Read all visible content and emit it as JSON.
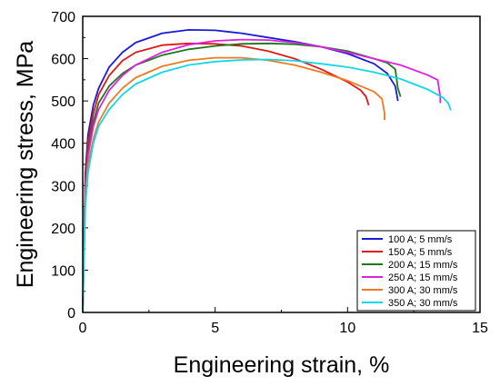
{
  "chart_data": {
    "type": "line",
    "title": "",
    "xlabel": "Engineering strain, %",
    "ylabel": "Engineering stress, MPa",
    "xlim": [
      0,
      15
    ],
    "ylim": [
      0,
      700
    ],
    "xticks": [
      0,
      5,
      10,
      15
    ],
    "yticks": [
      0,
      100,
      200,
      300,
      400,
      500,
      600,
      700
    ],
    "legend_position": "bottom-right",
    "grid": false,
    "series": [
      {
        "name": "100 A; 5 mm/s",
        "color": "#1a1ad9",
        "points": [
          [
            0,
            0
          ],
          [
            0.05,
            180
          ],
          [
            0.1,
            330
          ],
          [
            0.2,
            420
          ],
          [
            0.4,
            490
          ],
          [
            0.6,
            530
          ],
          [
            1,
            580
          ],
          [
            1.5,
            615
          ],
          [
            2,
            638
          ],
          [
            3,
            660
          ],
          [
            4,
            668
          ],
          [
            5,
            667
          ],
          [
            6,
            660
          ],
          [
            7,
            650
          ],
          [
            8,
            640
          ],
          [
            9,
            628
          ],
          [
            10,
            612
          ],
          [
            11,
            588
          ],
          [
            11.5,
            565
          ],
          [
            11.8,
            535
          ],
          [
            11.9,
            500
          ]
        ]
      },
      {
        "name": "150 A; 5 mm/s",
        "color": "#e01818",
        "points": [
          [
            0,
            0
          ],
          [
            0.05,
            170
          ],
          [
            0.1,
            310
          ],
          [
            0.2,
            400
          ],
          [
            0.4,
            470
          ],
          [
            0.6,
            515
          ],
          [
            1,
            560
          ],
          [
            1.5,
            595
          ],
          [
            2,
            615
          ],
          [
            3,
            632
          ],
          [
            4,
            636
          ],
          [
            5,
            635
          ],
          [
            6,
            630
          ],
          [
            7,
            618
          ],
          [
            8,
            600
          ],
          [
            9,
            575
          ],
          [
            10,
            545
          ],
          [
            10.5,
            525
          ],
          [
            10.7,
            510
          ],
          [
            10.8,
            490
          ]
        ]
      },
      {
        "name": "200 A; 15 mm/s",
        "color": "#1a7a1a",
        "points": [
          [
            0,
            0
          ],
          [
            0.05,
            160
          ],
          [
            0.1,
            300
          ],
          [
            0.2,
            380
          ],
          [
            0.4,
            450
          ],
          [
            0.6,
            495
          ],
          [
            1,
            535
          ],
          [
            1.5,
            565
          ],
          [
            2,
            585
          ],
          [
            3,
            608
          ],
          [
            4,
            622
          ],
          [
            5,
            630
          ],
          [
            6,
            635
          ],
          [
            7,
            636
          ],
          [
            8,
            634
          ],
          [
            9,
            628
          ],
          [
            10,
            618
          ],
          [
            11,
            600
          ],
          [
            11.5,
            590
          ],
          [
            11.8,
            575
          ],
          [
            11.9,
            530
          ],
          [
            12,
            510
          ]
        ]
      },
      {
        "name": "250 A; 15 mm/s",
        "color": "#e020e0",
        "points": [
          [
            0,
            0
          ],
          [
            0.05,
            150
          ],
          [
            0.1,
            290
          ],
          [
            0.2,
            370
          ],
          [
            0.4,
            440
          ],
          [
            0.6,
            480
          ],
          [
            1,
            525
          ],
          [
            1.5,
            560
          ],
          [
            2,
            585
          ],
          [
            3,
            615
          ],
          [
            4,
            633
          ],
          [
            5,
            642
          ],
          [
            6,
            645
          ],
          [
            7,
            644
          ],
          [
            8,
            638
          ],
          [
            9,
            628
          ],
          [
            10,
            615
          ],
          [
            11,
            600
          ],
          [
            12,
            585
          ],
          [
            13,
            562
          ],
          [
            13.4,
            550
          ],
          [
            13.5,
            510
          ],
          [
            13.5,
            495
          ]
        ]
      },
      {
        "name": "300 A; 30 mm/s",
        "color": "#f07820",
        "points": [
          [
            0,
            0
          ],
          [
            0.05,
            140
          ],
          [
            0.1,
            270
          ],
          [
            0.2,
            350
          ],
          [
            0.4,
            410
          ],
          [
            0.6,
            450
          ],
          [
            1,
            495
          ],
          [
            1.5,
            530
          ],
          [
            2,
            555
          ],
          [
            3,
            582
          ],
          [
            4,
            596
          ],
          [
            5,
            602
          ],
          [
            6,
            602
          ],
          [
            7,
            596
          ],
          [
            8,
            585
          ],
          [
            9,
            568
          ],
          [
            10,
            548
          ],
          [
            11,
            522
          ],
          [
            11.3,
            505
          ],
          [
            11.4,
            470
          ],
          [
            11.4,
            455
          ]
        ]
      },
      {
        "name": "350 A; 30 mm/s",
        "color": "#10d8e8",
        "points": [
          [
            0,
            0
          ],
          [
            0.05,
            130
          ],
          [
            0.1,
            250
          ],
          [
            0.2,
            330
          ],
          [
            0.4,
            400
          ],
          [
            0.6,
            440
          ],
          [
            1,
            480
          ],
          [
            1.5,
            515
          ],
          [
            2,
            540
          ],
          [
            3,
            568
          ],
          [
            4,
            585
          ],
          [
            5,
            593
          ],
          [
            6,
            597
          ],
          [
            7,
            598
          ],
          [
            8,
            595
          ],
          [
            9,
            588
          ],
          [
            10,
            580
          ],
          [
            11,
            568
          ],
          [
            12,
            552
          ],
          [
            13,
            528
          ],
          [
            13.6,
            508
          ],
          [
            13.8,
            495
          ],
          [
            13.9,
            478
          ]
        ]
      }
    ]
  }
}
